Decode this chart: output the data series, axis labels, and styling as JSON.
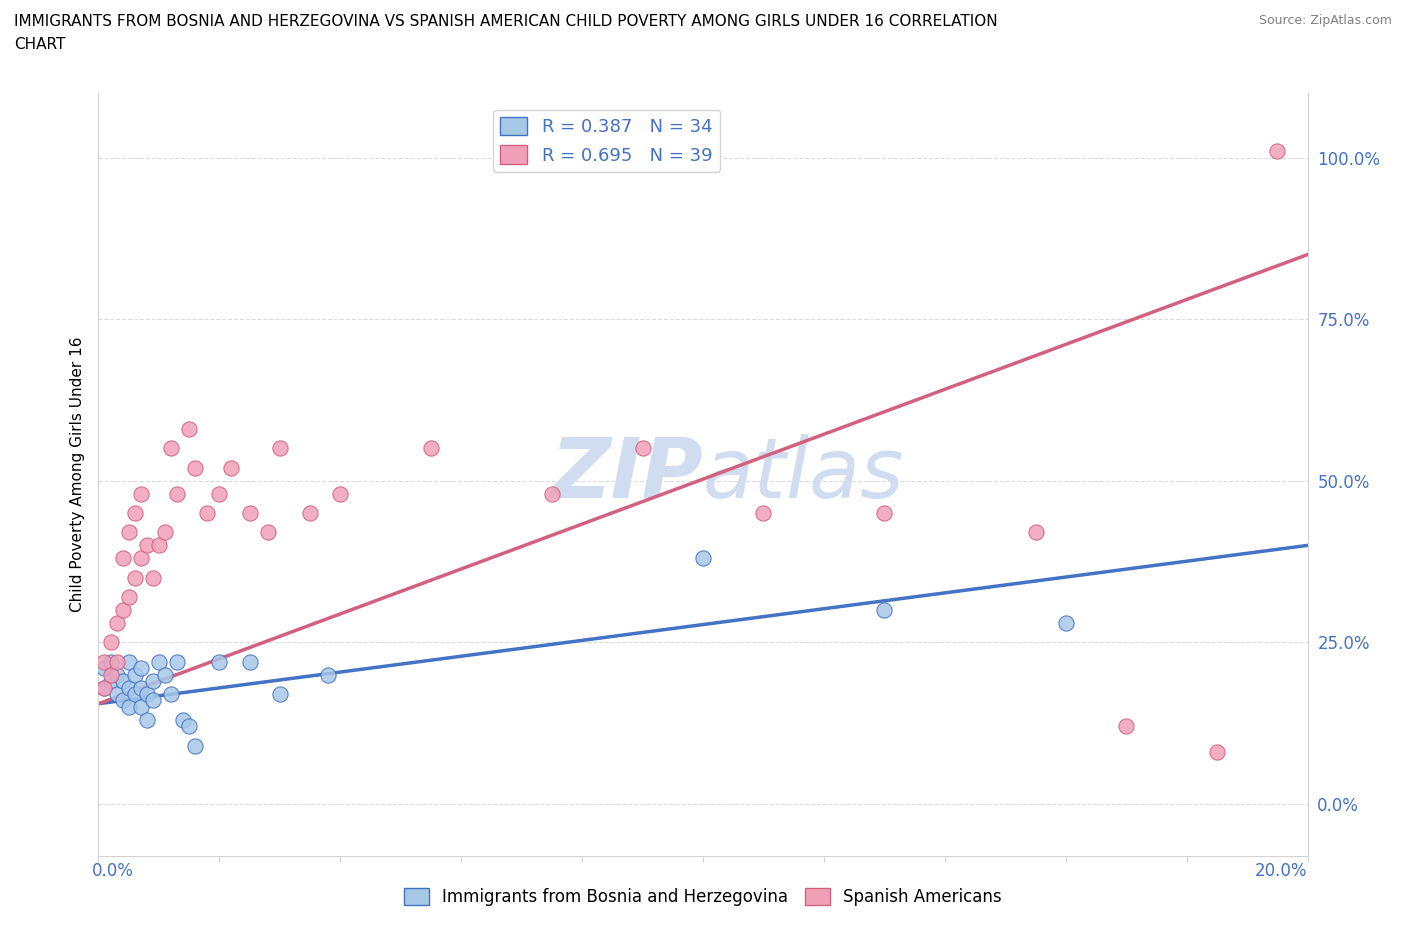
{
  "title_line1": "IMMIGRANTS FROM BOSNIA AND HERZEGOVINA VS SPANISH AMERICAN CHILD POVERTY AMONG GIRLS UNDER 16 CORRELATION",
  "title_line2": "CHART",
  "source": "Source: ZipAtlas.com",
  "ylabel": "Child Poverty Among Girls Under 16",
  "yticks_labels": [
    "0.0%",
    "25.0%",
    "50.0%",
    "75.0%",
    "100.0%"
  ],
  "ytick_vals": [
    0.0,
    0.25,
    0.5,
    0.75,
    1.0
  ],
  "xlim": [
    0.0,
    0.2
  ],
  "ylim": [
    -0.08,
    1.1
  ],
  "legend1_label": "R = 0.387   N = 34",
  "legend2_label": "R = 0.695   N = 39",
  "color_blue": "#A8C8E8",
  "color_pink": "#F0A0B8",
  "line_color_blue": "#4472C4",
  "line_color_pink": "#D46080",
  "tick_label_color": "#4472C4",
  "watermark_color": "#D0DCF0",
  "bosnia_x": [
    0.001,
    0.001,
    0.002,
    0.002,
    0.003,
    0.003,
    0.004,
    0.004,
    0.005,
    0.005,
    0.005,
    0.006,
    0.006,
    0.007,
    0.007,
    0.007,
    0.008,
    0.008,
    0.009,
    0.009,
    0.01,
    0.011,
    0.012,
    0.013,
    0.014,
    0.015,
    0.016,
    0.02,
    0.025,
    0.03,
    0.038,
    0.1,
    0.13,
    0.16
  ],
  "bosnia_y": [
    0.18,
    0.21,
    0.19,
    0.22,
    0.17,
    0.2,
    0.16,
    0.19,
    0.15,
    0.18,
    0.22,
    0.17,
    0.2,
    0.18,
    0.21,
    0.15,
    0.13,
    0.17,
    0.16,
    0.19,
    0.22,
    0.2,
    0.17,
    0.22,
    0.13,
    0.12,
    0.09,
    0.22,
    0.22,
    0.17,
    0.2,
    0.38,
    0.3,
    0.28
  ],
  "spanish_x": [
    0.001,
    0.001,
    0.002,
    0.002,
    0.003,
    0.003,
    0.004,
    0.004,
    0.005,
    0.005,
    0.006,
    0.006,
    0.007,
    0.007,
    0.008,
    0.009,
    0.01,
    0.011,
    0.012,
    0.013,
    0.015,
    0.016,
    0.018,
    0.02,
    0.022,
    0.025,
    0.028,
    0.03,
    0.035,
    0.04,
    0.055,
    0.075,
    0.09,
    0.11,
    0.13,
    0.155,
    0.17,
    0.185,
    0.195
  ],
  "spanish_y": [
    0.18,
    0.22,
    0.2,
    0.25,
    0.22,
    0.28,
    0.3,
    0.38,
    0.32,
    0.42,
    0.35,
    0.45,
    0.38,
    0.48,
    0.4,
    0.35,
    0.4,
    0.42,
    0.55,
    0.48,
    0.58,
    0.52,
    0.45,
    0.48,
    0.52,
    0.45,
    0.42,
    0.55,
    0.45,
    0.48,
    0.55,
    0.48,
    0.55,
    0.45,
    0.45,
    0.42,
    0.12,
    0.08,
    1.01
  ],
  "bosnia_trend_x": [
    0.0,
    0.2
  ],
  "bosnia_trend_y": [
    0.155,
    0.4
  ],
  "spanish_trend_x": [
    0.0,
    0.2
  ],
  "spanish_trend_y": [
    0.155,
    0.85
  ]
}
